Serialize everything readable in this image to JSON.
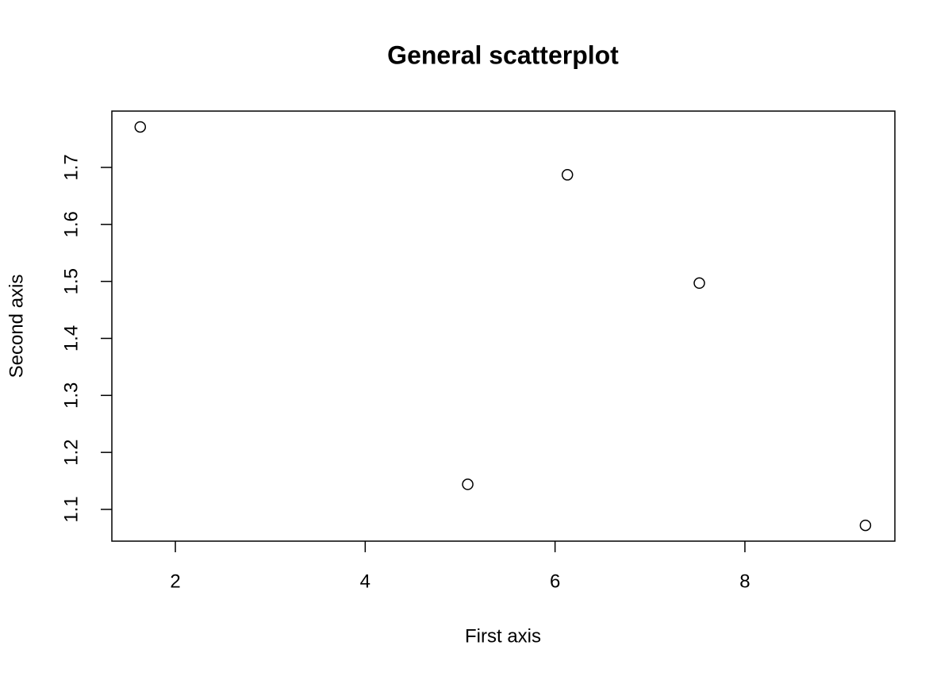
{
  "chart_data": {
    "type": "scatter",
    "title": "General scatterplot",
    "x_label": "First axis",
    "y_label": "Second axis",
    "x": [
      1.63,
      5.08,
      6.13,
      7.52,
      9.27
    ],
    "values": [
      1.771,
      1.144,
      1.687,
      1.497,
      1.072
    ],
    "xlim": [
      1.331,
      9.58
    ],
    "ylim": [
      1.0443,
      1.7988
    ],
    "xticks": [
      2,
      4,
      6,
      8
    ],
    "yticks": [
      1.1,
      1.2,
      1.3,
      1.4,
      1.5,
      1.6,
      1.7
    ],
    "color": "#000000",
    "grid": false
  }
}
